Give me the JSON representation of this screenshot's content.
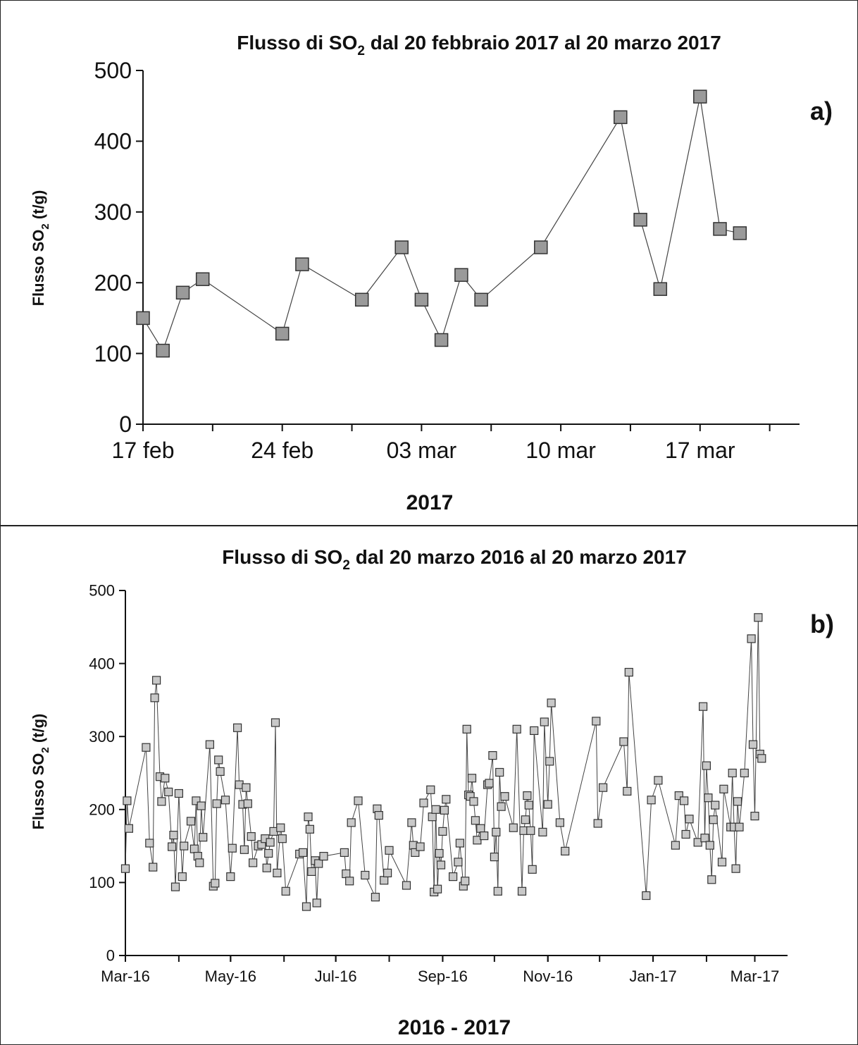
{
  "chart_data": [
    {
      "type": "line",
      "panel_label": "a)",
      "title_main": "Flusso di SO",
      "title_sub": "2",
      "title_rest": " dal 20 febbraio 2017 al 20 marzo 2017",
      "ylabel_main": "Flusso SO",
      "ylabel_sub": "2",
      "ylabel_rest": " (t/g)",
      "xlabel": "2017",
      "ylim": [
        0,
        500
      ],
      "yticks": [
        0,
        100,
        200,
        300,
        400,
        500
      ],
      "xlim": [
        "2017-02-17",
        "2017-03-22"
      ],
      "xtick_labels": [
        {
          "date": "2017-02-17",
          "label": "17 feb"
        },
        {
          "date": "2017-02-24",
          "label": "24 feb"
        },
        {
          "date": "2017-03-03",
          "label": "03 mar"
        },
        {
          "date": "2017-03-10",
          "label": "10 mar"
        },
        {
          "date": "2017-03-17",
          "label": "17 mar"
        }
      ],
      "grid": false,
      "series": [
        {
          "marker_color": "#9a9a9a",
          "points": [
            [
              "2017-02-17",
              150
            ],
            [
              "2017-02-18",
              104
            ],
            [
              "2017-02-19",
              186
            ],
            [
              "2017-02-20",
              205
            ],
            [
              "2017-02-24",
              128
            ],
            [
              "2017-02-25",
              226
            ],
            [
              "2017-02-28",
              176
            ],
            [
              "2017-03-02",
              250
            ],
            [
              "2017-03-03",
              176
            ],
            [
              "2017-03-04",
              119
            ],
            [
              "2017-03-05",
              211
            ],
            [
              "2017-03-06",
              176
            ],
            [
              "2017-03-09",
              250
            ],
            [
              "2017-03-13",
              434
            ],
            [
              "2017-03-14",
              289
            ],
            [
              "2017-03-15",
              191
            ],
            [
              "2017-03-17",
              463
            ],
            [
              "2017-03-18",
              276
            ],
            [
              "2017-03-19",
              270
            ]
          ]
        }
      ]
    },
    {
      "type": "line",
      "panel_label": "b)",
      "title_main": "Flusso di SO",
      "title_sub": "2",
      "title_rest": " dal 20 marzo 2016 al 20 marzo 2017",
      "ylabel_main": "Flusso SO",
      "ylabel_sub": "2",
      "ylabel_rest": " (t/g)",
      "xlabel": "2016 - 2017",
      "ylim": [
        0,
        500
      ],
      "yticks": [
        0,
        100,
        200,
        300,
        400,
        500
      ],
      "xlim": [
        "2016-03-01",
        "2017-03-20"
      ],
      "xtick_labels": [
        {
          "date": "2016-03-01",
          "label": "Mar-16"
        },
        {
          "date": "2016-05-01",
          "label": "May-16"
        },
        {
          "date": "2016-07-01",
          "label": "Jul-16"
        },
        {
          "date": "2016-09-01",
          "label": "Sep-16"
        },
        {
          "date": "2016-11-01",
          "label": "Nov-16"
        },
        {
          "date": "2017-01-01",
          "label": "Jan-17"
        },
        {
          "date": "2017-03-01",
          "label": "Mar-17"
        }
      ],
      "minor_ticks_monthly": true,
      "grid": false,
      "series": [
        {
          "marker_color": "#c8c8c8",
          "points": [
            [
              "2016-03-01",
              119
            ],
            [
              "2016-03-02",
              212
            ],
            [
              "2016-03-03",
              174
            ],
            [
              "2016-03-13",
              285
            ],
            [
              "2016-03-15",
              154
            ],
            [
              "2016-03-17",
              121
            ],
            [
              "2016-03-18",
              353
            ],
            [
              "2016-03-19",
              377
            ],
            [
              "2016-03-21",
              245
            ],
            [
              "2016-03-22",
              211
            ],
            [
              "2016-03-24",
              243
            ],
            [
              "2016-03-26",
              224
            ],
            [
              "2016-03-28",
              149
            ],
            [
              "2016-03-29",
              165
            ],
            [
              "2016-03-30",
              94
            ],
            [
              "2016-04-01",
              222
            ],
            [
              "2016-04-03",
              108
            ],
            [
              "2016-04-04",
              150
            ],
            [
              "2016-04-08",
              184
            ],
            [
              "2016-04-10",
              146
            ],
            [
              "2016-04-11",
              212
            ],
            [
              "2016-04-12",
              136
            ],
            [
              "2016-04-13",
              127
            ],
            [
              "2016-04-14",
              205
            ],
            [
              "2016-04-15",
              162
            ],
            [
              "2016-04-19",
              289
            ],
            [
              "2016-04-21",
              95
            ],
            [
              "2016-04-22",
              99
            ],
            [
              "2016-04-23",
              208
            ],
            [
              "2016-04-24",
              268
            ],
            [
              "2016-04-25",
              252
            ],
            [
              "2016-04-28",
              213
            ],
            [
              "2016-05-01",
              108
            ],
            [
              "2016-05-02",
              147
            ],
            [
              "2016-05-05",
              312
            ],
            [
              "2016-05-06",
              234
            ],
            [
              "2016-05-08",
              207
            ],
            [
              "2016-05-09",
              145
            ],
            [
              "2016-05-10",
              230
            ],
            [
              "2016-05-11",
              208
            ],
            [
              "2016-05-13",
              163
            ],
            [
              "2016-05-14",
              127
            ],
            [
              "2016-05-17",
              150
            ],
            [
              "2016-05-19",
              152
            ],
            [
              "2016-05-21",
              160
            ],
            [
              "2016-05-22",
              120
            ],
            [
              "2016-05-23",
              140
            ],
            [
              "2016-05-24",
              155
            ],
            [
              "2016-05-26",
              170
            ],
            [
              "2016-05-27",
              319
            ],
            [
              "2016-05-28",
              113
            ],
            [
              "2016-05-30",
              175
            ],
            [
              "2016-05-31",
              160
            ],
            [
              "2016-06-02",
              88
            ],
            [
              "2016-06-10",
              139
            ],
            [
              "2016-06-12",
              141
            ],
            [
              "2016-06-14",
              67
            ],
            [
              "2016-06-15",
              190
            ],
            [
              "2016-06-16",
              173
            ],
            [
              "2016-06-17",
              115
            ],
            [
              "2016-06-19",
              130
            ],
            [
              "2016-06-20",
              72
            ],
            [
              "2016-06-21",
              126
            ],
            [
              "2016-06-24",
              136
            ],
            [
              "2016-07-06",
              141
            ],
            [
              "2016-07-07",
              112
            ],
            [
              "2016-07-09",
              102
            ],
            [
              "2016-07-10",
              182
            ],
            [
              "2016-07-14",
              212
            ],
            [
              "2016-07-18",
              110
            ],
            [
              "2016-07-24",
              80
            ],
            [
              "2016-07-25",
              201
            ],
            [
              "2016-07-26",
              192
            ],
            [
              "2016-07-29",
              103
            ],
            [
              "2016-07-31",
              113
            ],
            [
              "2016-08-01",
              144
            ],
            [
              "2016-08-11",
              96
            ],
            [
              "2016-08-14",
              182
            ],
            [
              "2016-08-15",
              151
            ],
            [
              "2016-08-16",
              141
            ],
            [
              "2016-08-19",
              149
            ],
            [
              "2016-08-21",
              209
            ],
            [
              "2016-08-25",
              227
            ],
            [
              "2016-08-26",
              190
            ],
            [
              "2016-08-27",
              87
            ],
            [
              "2016-08-28",
              200
            ],
            [
              "2016-08-29",
              91
            ],
            [
              "2016-08-30",
              140
            ],
            [
              "2016-08-31",
              124
            ],
            [
              "2016-09-01",
              170
            ],
            [
              "2016-09-02",
              199
            ],
            [
              "2016-09-03",
              214
            ],
            [
              "2016-09-07",
              108
            ],
            [
              "2016-09-10",
              128
            ],
            [
              "2016-09-11",
              154
            ],
            [
              "2016-09-13",
              95
            ],
            [
              "2016-09-14",
              102
            ],
            [
              "2016-09-15",
              310
            ],
            [
              "2016-09-16",
              220
            ],
            [
              "2016-09-17",
              218
            ],
            [
              "2016-09-18",
              243
            ],
            [
              "2016-09-19",
              211
            ],
            [
              "2016-09-20",
              185
            ],
            [
              "2016-09-21",
              158
            ],
            [
              "2016-09-23",
              174
            ],
            [
              "2016-09-25",
              164
            ],
            [
              "2016-09-27",
              234
            ],
            [
              "2016-09-28",
              236
            ],
            [
              "2016-09-30",
              274
            ],
            [
              "2016-10-01",
              135
            ],
            [
              "2016-10-02",
              169
            ],
            [
              "2016-10-03",
              88
            ],
            [
              "2016-10-04",
              251
            ],
            [
              "2016-10-05",
              204
            ],
            [
              "2016-10-07",
              218
            ],
            [
              "2016-10-12",
              175
            ],
            [
              "2016-10-14",
              310
            ],
            [
              "2016-10-17",
              88
            ],
            [
              "2016-10-18",
              171
            ],
            [
              "2016-10-19",
              186
            ],
            [
              "2016-10-20",
              219
            ],
            [
              "2016-10-21",
              206
            ],
            [
              "2016-10-22",
              171
            ],
            [
              "2016-10-23",
              118
            ],
            [
              "2016-10-24",
              308
            ],
            [
              "2016-10-29",
              169
            ],
            [
              "2016-10-30",
              320
            ],
            [
              "2016-11-01",
              207
            ],
            [
              "2016-11-02",
              266
            ],
            [
              "2016-11-03",
              346
            ],
            [
              "2016-11-08",
              182
            ],
            [
              "2016-11-11",
              143
            ],
            [
              "2016-11-29",
              321
            ],
            [
              "2016-11-30",
              181
            ],
            [
              "2016-12-03",
              230
            ],
            [
              "2016-12-15",
              293
            ],
            [
              "2016-12-17",
              225
            ],
            [
              "2016-12-18",
              388
            ],
            [
              "2016-12-28",
              82
            ],
            [
              "2016-12-31",
              213
            ],
            [
              "2017-01-04",
              240
            ],
            [
              "2017-01-14",
              151
            ],
            [
              "2017-01-16",
              219
            ],
            [
              "2017-01-19",
              212
            ],
            [
              "2017-01-20",
              166
            ],
            [
              "2017-01-22",
              187
            ],
            [
              "2017-01-27",
              155
            ],
            [
              "2017-01-30",
              341
            ],
            [
              "2017-01-31",
              161
            ],
            [
              "2017-02-01",
              260
            ],
            [
              "2017-02-02",
              216
            ],
            [
              "2017-02-03",
              151
            ],
            [
              "2017-02-04",
              104
            ],
            [
              "2017-02-05",
              186
            ],
            [
              "2017-02-06",
              206
            ],
            [
              "2017-02-10",
              128
            ],
            [
              "2017-02-11",
              228
            ],
            [
              "2017-02-15",
              176
            ],
            [
              "2017-02-16",
              250
            ],
            [
              "2017-02-17",
              176
            ],
            [
              "2017-02-18",
              119
            ],
            [
              "2017-02-19",
              211
            ],
            [
              "2017-02-20",
              176
            ],
            [
              "2017-02-23",
              250
            ],
            [
              "2017-02-27",
              434
            ],
            [
              "2017-02-28",
              289
            ],
            [
              "2017-03-01",
              191
            ],
            [
              "2017-03-03",
              463
            ],
            [
              "2017-03-04",
              276
            ],
            [
              "2017-03-05",
              270
            ]
          ]
        }
      ]
    }
  ]
}
